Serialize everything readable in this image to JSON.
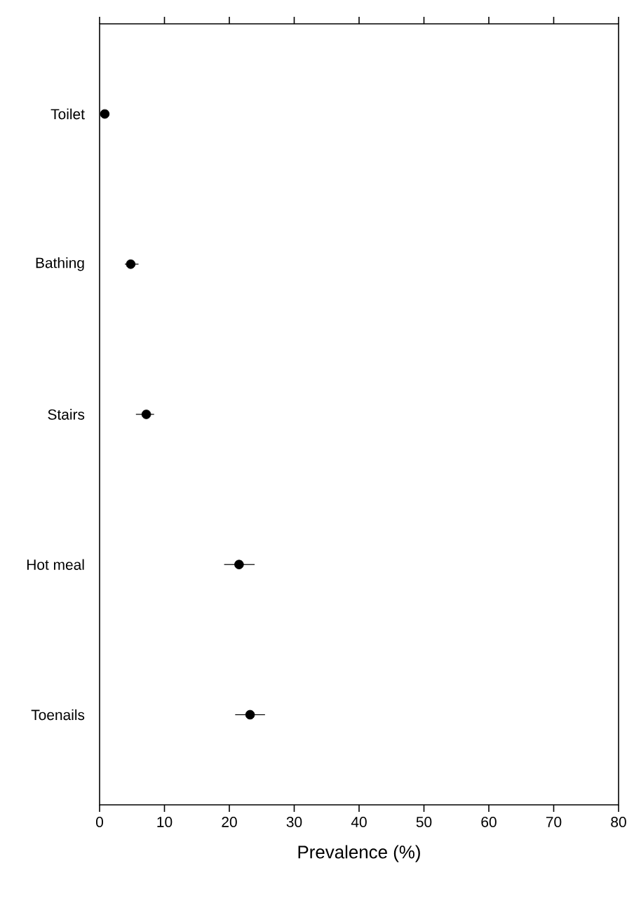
{
  "chart_data": {
    "type": "scatter",
    "orientation": "horizontal",
    "xlabel": "Prevalence (%)",
    "categories": [
      "Toilet",
      "Bathing",
      "Stairs",
      "Hot meal",
      "Toenails"
    ],
    "values": [
      0.8,
      4.8,
      7.2,
      21.5,
      23.2
    ],
    "errors": [
      [
        0.4,
        1.3
      ],
      [
        3.9,
        6.0
      ],
      [
        5.6,
        8.4
      ],
      [
        19.2,
        23.9
      ],
      [
        20.9,
        25.5
      ]
    ],
    "color": "#000000",
    "marker": "circle",
    "xlim": [
      0,
      80
    ],
    "xticks": [
      0,
      10,
      20,
      30,
      40,
      50,
      60,
      70,
      80
    ],
    "grid": false
  }
}
